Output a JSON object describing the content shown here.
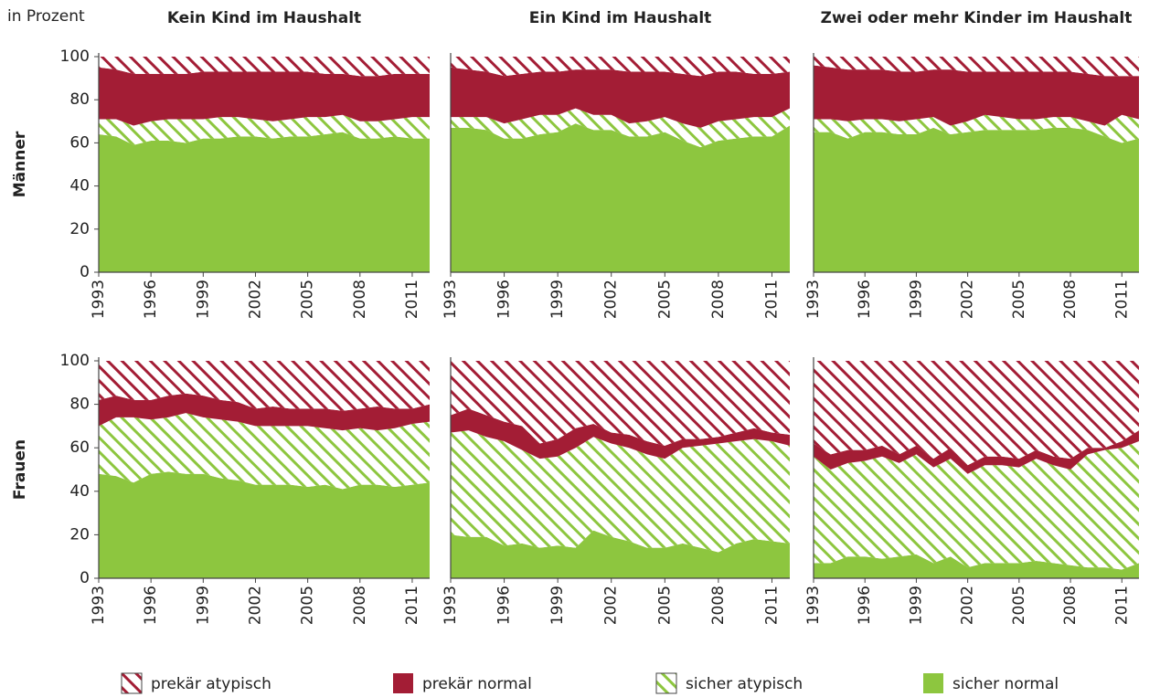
{
  "unit_label": "in Prozent",
  "chart_data": [
    {
      "type": "area",
      "stacked": true,
      "title": "Kein Kind im Haushalt",
      "ylabel": "Männer",
      "x": [
        1993,
        1994,
        1995,
        1996,
        1997,
        1998,
        1999,
        2000,
        2001,
        2002,
        2003,
        2004,
        2005,
        2006,
        2007,
        2008,
        2009,
        2010,
        2011,
        2012
      ],
      "xlim": [
        1993,
        2012
      ],
      "xticks": [
        1993,
        1996,
        1999,
        2002,
        2005,
        2008,
        2011
      ],
      "ylim": [
        0,
        100
      ],
      "yticks": [
        0,
        20,
        40,
        60,
        80,
        100
      ],
      "series": [
        {
          "name": "sicher normal",
          "color": "#8dc63f",
          "hatch": false,
          "values": [
            64,
            63,
            59,
            61,
            61,
            60,
            62,
            62,
            63,
            63,
            62,
            63,
            63,
            64,
            65,
            62,
            62,
            63,
            62,
            62
          ]
        },
        {
          "name": "sicher atypisch",
          "color": "#8dc63f",
          "hatch": true,
          "values": [
            7,
            8,
            9,
            9,
            10,
            11,
            9,
            10,
            9,
            8,
            8,
            8,
            9,
            8,
            8,
            8,
            8,
            8,
            10,
            10
          ]
        },
        {
          "name": "prekär normal",
          "color": "#a31d35",
          "hatch": false,
          "values": [
            24,
            23,
            24,
            22,
            21,
            21,
            22,
            21,
            21,
            22,
            23,
            22,
            21,
            20,
            19,
            21,
            21,
            21,
            20,
            20
          ]
        },
        {
          "name": "prekär atypisch",
          "color": "#a31d35",
          "hatch": true,
          "values": [
            5,
            6,
            8,
            8,
            8,
            8,
            7,
            7,
            7,
            7,
            7,
            7,
            7,
            8,
            8,
            9,
            9,
            8,
            8,
            8
          ]
        }
      ]
    },
    {
      "type": "area",
      "stacked": true,
      "title": "Ein Kind im Haushalt",
      "x": [
        1993,
        1994,
        1995,
        1996,
        1997,
        1998,
        1999,
        2000,
        2001,
        2002,
        2003,
        2004,
        2005,
        2006,
        2007,
        2008,
        2009,
        2010,
        2011,
        2012
      ],
      "xlim": [
        1993,
        2012
      ],
      "xticks": [
        1993,
        1996,
        1999,
        2002,
        2005,
        2008,
        2011
      ],
      "ylim": [
        0,
        100
      ],
      "series": [
        {
          "name": "sicher normal",
          "color": "#8dc63f",
          "hatch": false,
          "values": [
            67,
            67,
            66,
            62,
            62,
            64,
            65,
            69,
            66,
            66,
            63,
            63,
            65,
            61,
            58,
            61,
            62,
            63,
            63,
            68
          ]
        },
        {
          "name": "sicher atypisch",
          "color": "#8dc63f",
          "hatch": true,
          "values": [
            5,
            5,
            6,
            7,
            9,
            9,
            8,
            7,
            7,
            7,
            6,
            7,
            7,
            8,
            9,
            9,
            9,
            9,
            9,
            8
          ]
        },
        {
          "name": "prekär normal",
          "color": "#a31d35",
          "hatch": false,
          "values": [
            23,
            22,
            21,
            22,
            21,
            20,
            20,
            18,
            21,
            21,
            24,
            23,
            21,
            23,
            24,
            23,
            22,
            20,
            20,
            17
          ]
        },
        {
          "name": "prekär atypisch",
          "color": "#a31d35",
          "hatch": true,
          "values": [
            5,
            6,
            7,
            9,
            8,
            7,
            7,
            6,
            6,
            6,
            7,
            7,
            7,
            8,
            9,
            7,
            7,
            8,
            8,
            7
          ]
        }
      ]
    },
    {
      "type": "area",
      "stacked": true,
      "title": "Zwei oder mehr Kinder im Haushalt",
      "x": [
        1993,
        1994,
        1995,
        1996,
        1997,
        1998,
        1999,
        2000,
        2001,
        2002,
        2003,
        2004,
        2005,
        2006,
        2007,
        2008,
        2009,
        2010,
        2011,
        2012
      ],
      "xlim": [
        1993,
        2012
      ],
      "xticks": [
        1993,
        1996,
        1999,
        2002,
        2005,
        2008,
        2011
      ],
      "ylim": [
        0,
        100
      ],
      "series": [
        {
          "name": "sicher normal",
          "color": "#8dc63f",
          "hatch": false,
          "values": [
            65,
            65,
            62,
            65,
            65,
            64,
            64,
            67,
            64,
            65,
            66,
            66,
            66,
            66,
            67,
            67,
            66,
            63,
            60,
            62
          ]
        },
        {
          "name": "sicher atypisch",
          "color": "#8dc63f",
          "hatch": true,
          "values": [
            6,
            6,
            8,
            6,
            6,
            6,
            7,
            5,
            4,
            5,
            7,
            6,
            5,
            5,
            5,
            5,
            4,
            5,
            13,
            9
          ]
        },
        {
          "name": "prekär normal",
          "color": "#a31d35",
          "hatch": false,
          "values": [
            25,
            24,
            24,
            23,
            23,
            23,
            22,
            22,
            26,
            23,
            20,
            21,
            22,
            22,
            21,
            21,
            22,
            23,
            18,
            20
          ]
        },
        {
          "name": "prekär atypisch",
          "color": "#a31d35",
          "hatch": true,
          "values": [
            4,
            5,
            6,
            6,
            6,
            7,
            7,
            6,
            6,
            7,
            7,
            7,
            7,
            7,
            7,
            7,
            8,
            9,
            9,
            9
          ]
        }
      ]
    },
    {
      "type": "area",
      "stacked": true,
      "ylabel": "Frauen",
      "x": [
        1993,
        1994,
        1995,
        1996,
        1997,
        1998,
        1999,
        2000,
        2001,
        2002,
        2003,
        2004,
        2005,
        2006,
        2007,
        2008,
        2009,
        2010,
        2011,
        2012
      ],
      "xlim": [
        1993,
        2012
      ],
      "xticks": [
        1993,
        1996,
        1999,
        2002,
        2005,
        2008,
        2011
      ],
      "ylim": [
        0,
        100
      ],
      "yticks": [
        0,
        20,
        40,
        60,
        80,
        100
      ],
      "series": [
        {
          "name": "sicher normal",
          "color": "#8dc63f",
          "hatch": false,
          "values": [
            48,
            47,
            44,
            48,
            49,
            48,
            48,
            46,
            45,
            43,
            43,
            43,
            42,
            43,
            41,
            43,
            43,
            42,
            43,
            44
          ]
        },
        {
          "name": "sicher atypisch",
          "color": "#8dc63f",
          "hatch": true,
          "values": [
            22,
            27,
            30,
            25,
            25,
            28,
            26,
            27,
            27,
            27,
            27,
            27,
            28,
            26,
            27,
            26,
            25,
            27,
            28,
            28
          ]
        },
        {
          "name": "prekär normal",
          "color": "#a31d35",
          "hatch": false,
          "values": [
            12,
            10,
            8,
            9,
            10,
            9,
            10,
            9,
            9,
            8,
            9,
            8,
            8,
            9,
            9,
            9,
            11,
            9,
            7,
            8
          ]
        },
        {
          "name": "prekär atypisch",
          "color": "#a31d35",
          "hatch": true,
          "values": [
            18,
            16,
            18,
            18,
            16,
            15,
            16,
            18,
            19,
            22,
            21,
            22,
            22,
            22,
            23,
            22,
            21,
            22,
            22,
            20
          ]
        }
      ]
    },
    {
      "type": "area",
      "stacked": true,
      "x": [
        1993,
        1994,
        1995,
        1996,
        1997,
        1998,
        1999,
        2000,
        2001,
        2002,
        2003,
        2004,
        2005,
        2006,
        2007,
        2008,
        2009,
        2010,
        2011,
        2012
      ],
      "xlim": [
        1993,
        2012
      ],
      "xticks": [
        1993,
        1996,
        1999,
        2002,
        2005,
        2008,
        2011
      ],
      "ylim": [
        0,
        100
      ],
      "series": [
        {
          "name": "sicher normal",
          "color": "#8dc63f",
          "hatch": false,
          "values": [
            20,
            19,
            19,
            15,
            16,
            14,
            15,
            14,
            22,
            19,
            17,
            14,
            14,
            16,
            14,
            12,
            16,
            18,
            17,
            16
          ]
        },
        {
          "name": "sicher atypisch",
          "color": "#8dc63f",
          "hatch": true,
          "values": [
            47,
            49,
            46,
            48,
            43,
            41,
            41,
            46,
            43,
            43,
            43,
            43,
            41,
            44,
            47,
            50,
            47,
            46,
            46,
            45
          ]
        },
        {
          "name": "prekär normal",
          "color": "#a31d35",
          "hatch": false,
          "values": [
            8,
            10,
            10,
            9,
            11,
            7,
            8,
            9,
            6,
            5,
            6,
            6,
            6,
            4,
            3,
            3,
            4,
            5,
            4,
            5
          ]
        },
        {
          "name": "prekär atypisch",
          "color": "#a31d35",
          "hatch": true,
          "values": [
            25,
            22,
            25,
            28,
            30,
            38,
            36,
            31,
            29,
            33,
            34,
            37,
            39,
            36,
            36,
            35,
            33,
            31,
            33,
            34
          ]
        }
      ]
    },
    {
      "type": "area",
      "stacked": true,
      "x": [
        1993,
        1994,
        1995,
        1996,
        1997,
        1998,
        1999,
        2000,
        2001,
        2002,
        2003,
        2004,
        2005,
        2006,
        2007,
        2008,
        2009,
        2010,
        2011,
        2012
      ],
      "xlim": [
        1993,
        2012
      ],
      "xticks": [
        1993,
        1996,
        1999,
        2002,
        2005,
        2008,
        2011
      ],
      "ylim": [
        0,
        100
      ],
      "series": [
        {
          "name": "sicher normal",
          "color": "#8dc63f",
          "hatch": false,
          "values": [
            7,
            7,
            10,
            10,
            9,
            10,
            11,
            7,
            10,
            5,
            7,
            7,
            7,
            8,
            7,
            6,
            5,
            5,
            4,
            7
          ]
        },
        {
          "name": "sicher atypisch",
          "color": "#8dc63f",
          "hatch": true,
          "values": [
            49,
            43,
            43,
            44,
            47,
            43,
            46,
            44,
            45,
            43,
            45,
            45,
            44,
            47,
            45,
            44,
            52,
            54,
            56,
            56
          ]
        },
        {
          "name": "prekär normal",
          "color": "#a31d35",
          "hatch": false,
          "values": [
            6,
            7,
            6,
            5,
            5,
            4,
            4,
            4,
            5,
            4,
            4,
            4,
            4,
            4,
            4,
            5,
            3,
            1,
            3,
            5
          ]
        },
        {
          "name": "prekär atypisch",
          "color": "#a31d35",
          "hatch": true,
          "values": [
            38,
            43,
            41,
            41,
            39,
            43,
            39,
            45,
            40,
            48,
            44,
            44,
            45,
            41,
            44,
            45,
            40,
            40,
            37,
            32
          ]
        }
      ]
    }
  ]
}
